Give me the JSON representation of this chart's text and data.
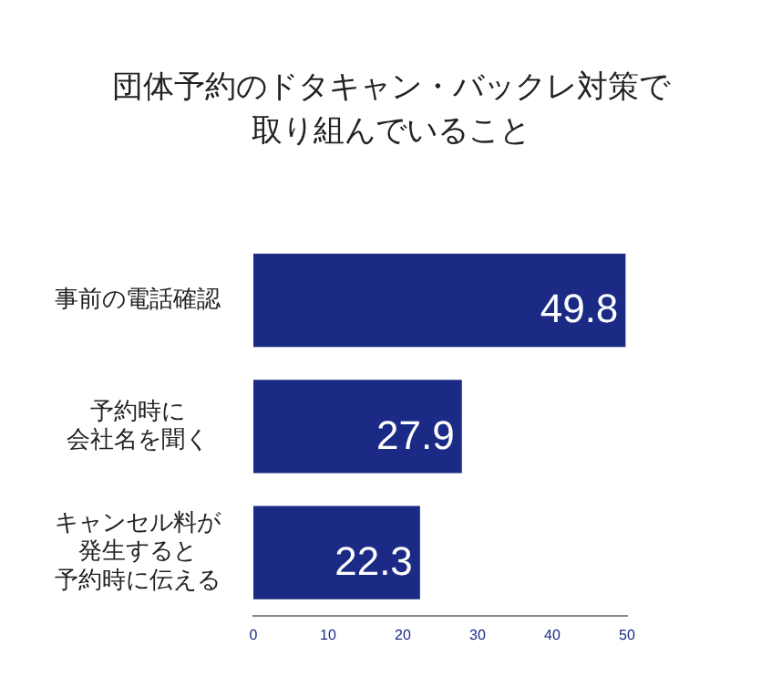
{
  "chart_data": {
    "type": "bar",
    "orientation": "horizontal",
    "title": "団体予約のドタキャン・バックレ対策で取り組んでいること",
    "categories": [
      "事前の電話確認",
      "予約時に会社名を聞く",
      "キャンセル料が発生すると予約時に伝える"
    ],
    "values": [
      49.8,
      27.9,
      22.3
    ],
    "color": "#1b2b85",
    "xlim": [
      0,
      50
    ],
    "xticks": [
      0,
      10,
      20,
      30,
      40,
      50
    ],
    "grid": false,
    "legend": false,
    "data_labels": true
  }
}
